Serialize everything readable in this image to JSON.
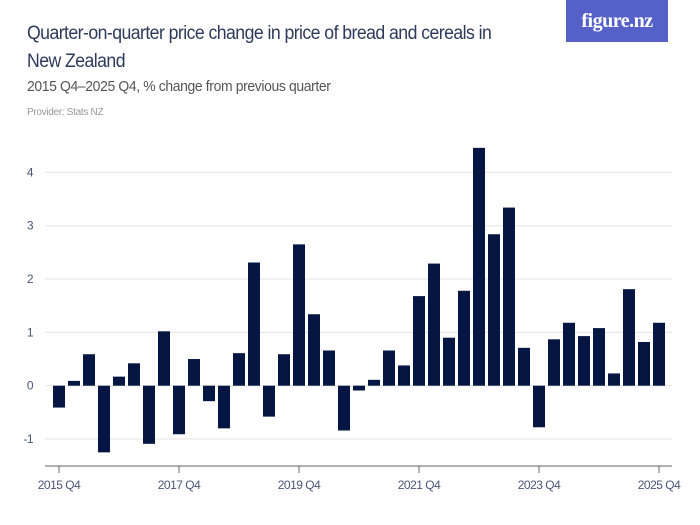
{
  "header": {
    "title": "Quarter-on-quarter price change in price of bread and cereals in New Zealand",
    "subtitle": "2015 Q4–2025 Q4, % change from previous quarter",
    "provider": "Provider: Stats NZ",
    "logo": "figure.nz"
  },
  "colors": {
    "bar": "#051642",
    "logo_bg": "#5560c9",
    "grid": "#e3e3e3",
    "title": "#2e3a5c"
  },
  "chart_data": {
    "type": "bar",
    "title": "Quarter-on-quarter price change in price of bread and cereals in New Zealand",
    "subtitle": "2015 Q4–2025 Q4, % change from previous quarter",
    "categories": [
      "2015 Q4",
      "2016 Q1",
      "2016 Q2",
      "2016 Q3",
      "2016 Q4",
      "2017 Q1",
      "2017 Q2",
      "2017 Q3",
      "2017 Q4",
      "2018 Q1",
      "2018 Q2",
      "2018 Q3",
      "2018 Q4",
      "2019 Q1",
      "2019 Q2",
      "2019 Q3",
      "2019 Q4",
      "2020 Q1",
      "2020 Q2",
      "2020 Q3",
      "2020 Q4",
      "2021 Q1",
      "2021 Q2",
      "2021 Q3",
      "2021 Q4",
      "2022 Q1",
      "2022 Q2",
      "2022 Q3",
      "2022 Q4",
      "2023 Q1",
      "2023 Q2",
      "2023 Q3",
      "2023 Q4",
      "2024 Q1",
      "2024 Q2",
      "2024 Q3",
      "2024 Q4",
      "2025 Q1",
      "2025 Q2",
      "2025 Q3",
      "2025 Q4"
    ],
    "values": [
      -0.41,
      0.09,
      0.59,
      -1.25,
      0.17,
      0.42,
      -1.09,
      1.02,
      -0.91,
      0.5,
      -0.29,
      -0.8,
      0.61,
      2.31,
      -0.58,
      0.59,
      2.65,
      1.34,
      0.66,
      -0.84,
      -0.09,
      0.11,
      0.66,
      0.38,
      1.68,
      2.29,
      0.9,
      1.78,
      4.46,
      2.84,
      3.34,
      0.71,
      -0.78,
      0.87,
      1.18,
      0.93,
      1.08,
      0.23,
      1.81,
      0.82,
      1.18
    ],
    "x_tick_labels": [
      "2015 Q4",
      "2017 Q4",
      "2019 Q4",
      "2021 Q4",
      "2023 Q4",
      "2025 Q4"
    ],
    "y_ticks": [
      -1,
      0,
      1,
      2,
      3,
      4
    ],
    "y_tick_labels": [
      "-1",
      "0",
      "1",
      "2",
      "3",
      "4"
    ],
    "ylim": [
      -1.5,
      4.5
    ],
    "grid": true,
    "xlabel": "",
    "ylabel": ""
  }
}
